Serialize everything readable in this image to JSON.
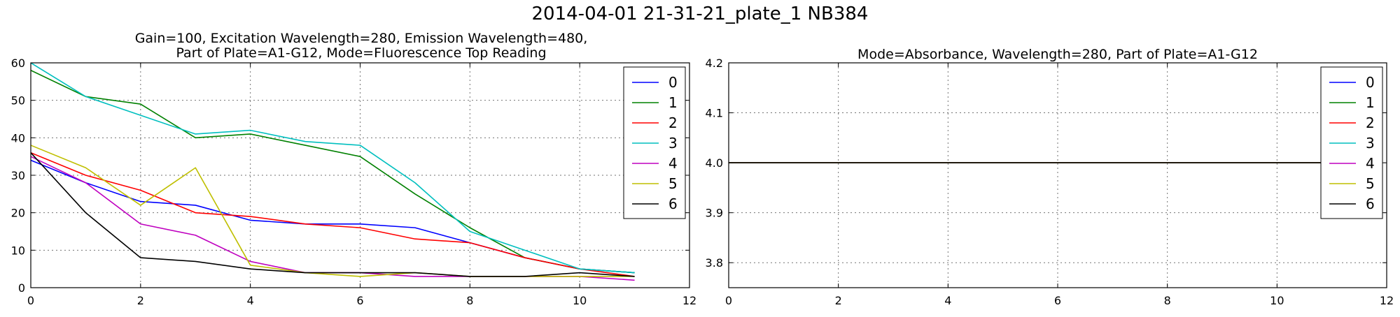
{
  "figure": {
    "suptitle": "2014-04-01 21-31-21_plate_1 NB384"
  },
  "chart_data": [
    {
      "type": "line",
      "title_lines": [
        "Gain=100, Excitation Wavelength=280, Emission Wavelength=480,",
        "Part of Plate=A1-G12, Mode=Fluorescence Top Reading"
      ],
      "xlim": [
        0,
        12
      ],
      "ylim": [
        0,
        60
      ],
      "xticks": [
        0,
        2,
        4,
        6,
        8,
        10,
        12
      ],
      "yticks": [
        0,
        10,
        20,
        30,
        40,
        50,
        60
      ],
      "grid": true,
      "legend_position": "top-right",
      "x": [
        0,
        1,
        2,
        3,
        4,
        5,
        6,
        7,
        8,
        9,
        10,
        11
      ],
      "series": [
        {
          "name": "0",
          "color": "#0000ff",
          "values": [
            34,
            28,
            23,
            22,
            18,
            17,
            17,
            16,
            12,
            8,
            5,
            4
          ]
        },
        {
          "name": "1",
          "color": "#008000",
          "values": [
            58,
            51,
            49,
            40,
            41,
            38,
            35,
            25,
            16,
            8,
            5,
            4
          ]
        },
        {
          "name": "2",
          "color": "#ff0000",
          "values": [
            36,
            30,
            26,
            20,
            19,
            17,
            16,
            13,
            12,
            8,
            5,
            3
          ]
        },
        {
          "name": "3",
          "color": "#00bfbf",
          "values": [
            60,
            51,
            46,
            41,
            42,
            39,
            38,
            28,
            15,
            10,
            5,
            4
          ]
        },
        {
          "name": "4",
          "color": "#bf00bf",
          "values": [
            35,
            28,
            17,
            14,
            7,
            4,
            4,
            3,
            3,
            3,
            3,
            2
          ]
        },
        {
          "name": "5",
          "color": "#bfbf00",
          "values": [
            38,
            32,
            22,
            32,
            6,
            4,
            3,
            4,
            3,
            3,
            3,
            3
          ]
        },
        {
          "name": "6",
          "color": "#000000",
          "values": [
            36,
            20,
            8,
            7,
            5,
            4,
            4,
            4,
            3,
            3,
            4,
            3
          ]
        }
      ]
    },
    {
      "type": "line",
      "title_lines": [
        "Mode=Absorbance, Wavelength=280, Part of Plate=A1-G12"
      ],
      "xlim": [
        0,
        12
      ],
      "ylim": [
        3.75,
        4.2
      ],
      "xticks": [
        0,
        2,
        4,
        6,
        8,
        10,
        12
      ],
      "yticks": [
        3.8,
        3.9,
        4.0,
        4.1,
        4.2
      ],
      "ytick_labels": [
        "3.8",
        "3.9",
        "4.0",
        "4.1",
        "4.2"
      ],
      "grid": true,
      "legend_position": "top-right",
      "x": [
        0,
        1,
        2,
        3,
        4,
        5,
        6,
        7,
        8,
        9,
        10,
        11
      ],
      "series": [
        {
          "name": "0",
          "color": "#0000ff",
          "values": [
            4.0,
            4.0,
            4.0,
            4.0,
            4.0,
            4.0,
            4.0,
            4.0,
            4.0,
            4.0,
            4.0,
            4.0
          ]
        },
        {
          "name": "1",
          "color": "#008000",
          "values": [
            4.0,
            4.0,
            4.0,
            4.0,
            4.0,
            4.0,
            4.0,
            4.0,
            4.0,
            4.0,
            4.0,
            4.0
          ]
        },
        {
          "name": "2",
          "color": "#ff0000",
          "values": [
            4.0,
            4.0,
            4.0,
            4.0,
            4.0,
            4.0,
            4.0,
            4.0,
            4.0,
            4.0,
            4.0,
            4.0
          ]
        },
        {
          "name": "3",
          "color": "#00bfbf",
          "values": [
            4.0,
            4.0,
            4.0,
            4.0,
            4.0,
            4.0,
            4.0,
            4.0,
            4.0,
            4.0,
            4.0,
            4.0
          ]
        },
        {
          "name": "4",
          "color": "#bf00bf",
          "values": [
            4.0,
            4.0,
            4.0,
            4.0,
            4.0,
            4.0,
            4.0,
            4.0,
            4.0,
            4.0,
            4.0,
            4.0
          ]
        },
        {
          "name": "5",
          "color": "#bfbf00",
          "values": [
            4.0,
            4.0,
            4.0,
            4.0,
            4.0,
            4.0,
            4.0,
            4.0,
            4.0,
            4.0,
            4.0,
            4.0
          ]
        },
        {
          "name": "6",
          "color": "#000000",
          "values": [
            4.0,
            4.0,
            4.0,
            4.0,
            4.0,
            4.0,
            4.0,
            4.0,
            4.0,
            4.0,
            4.0,
            4.0
          ]
        }
      ]
    }
  ]
}
